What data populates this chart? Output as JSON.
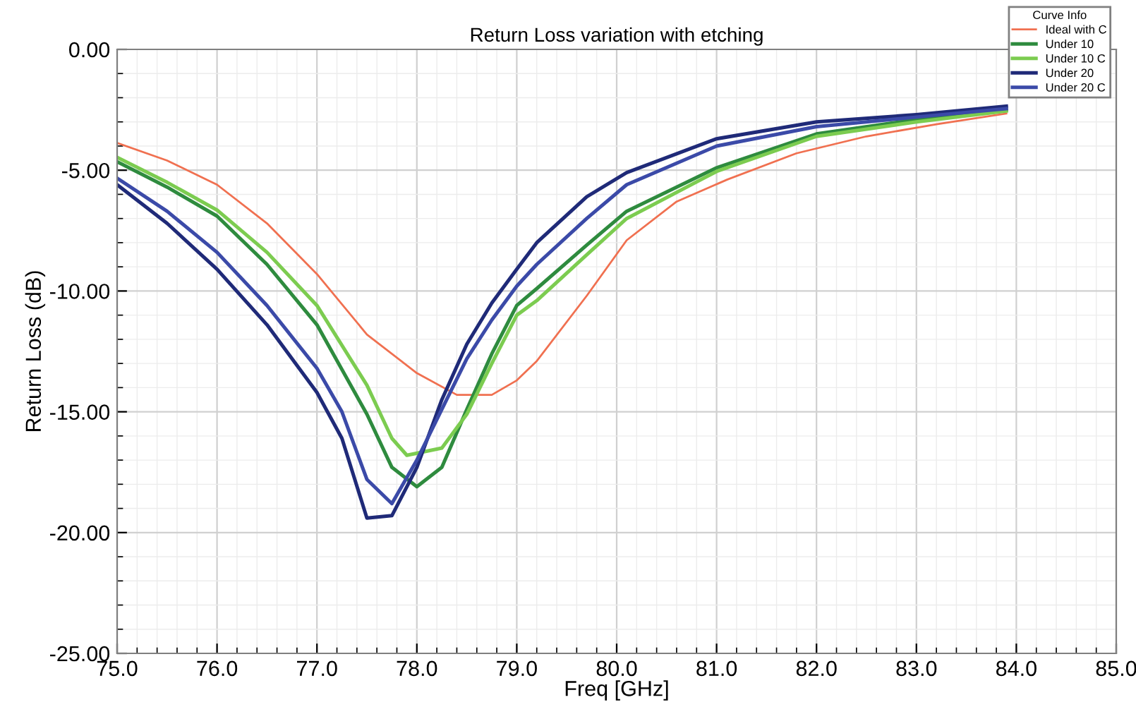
{
  "chart_data": {
    "type": "line",
    "title": "Return Loss variation with etching",
    "xlabel": "Freq [GHz]",
    "ylabel": "Return Loss (dB)",
    "legend_title": "Curve Info",
    "xlim": [
      75,
      85
    ],
    "ylim": [
      -25,
      0
    ],
    "xticks": [
      {
        "value": 75,
        "label": "75.0"
      },
      {
        "value": 76,
        "label": "76.0"
      },
      {
        "value": 77,
        "label": "77.0"
      },
      {
        "value": 78,
        "label": "78.0"
      },
      {
        "value": 79,
        "label": "79.0"
      },
      {
        "value": 80,
        "label": "80.0"
      },
      {
        "value": 81,
        "label": "81.0"
      },
      {
        "value": 82,
        "label": "82.0"
      },
      {
        "value": 83,
        "label": "83.0"
      },
      {
        "value": 84,
        "label": "84.0"
      },
      {
        "value": 85,
        "label": "85.0"
      }
    ],
    "yticks": [
      {
        "value": -25,
        "label": "-25.00"
      },
      {
        "value": -20,
        "label": "-20.00"
      },
      {
        "value": -15,
        "label": "-15.00"
      },
      {
        "value": -10,
        "label": "-10.00"
      },
      {
        "value": -5,
        "label": "-5.00"
      },
      {
        "value": 0,
        "label": "0.00"
      }
    ],
    "grid": true,
    "legend": "top right",
    "marker": "none",
    "line_style": "solid",
    "series": [
      {
        "name": "Ideal with C",
        "color": "#f07050",
        "x": [
          75,
          75.5,
          76,
          76.5,
          77,
          77.5,
          78,
          78.4,
          78.75,
          79,
          79.2,
          79.7,
          80.1,
          80.6,
          81.1,
          81.8,
          82.5,
          83.2,
          83.9
        ],
        "values": [
          -3.87,
          -4.6,
          -5.6,
          -7.2,
          -9.3,
          -11.8,
          -13.4,
          -14.3,
          -14.3,
          -13.7,
          -12.9,
          -10.2,
          -7.9,
          -6.3,
          -5.4,
          -4.3,
          -3.6,
          -3.1,
          -2.65
        ]
      },
      {
        "name": "Under 10",
        "color": "#2e8b3e",
        "x": [
          75,
          75.5,
          76,
          76.5,
          77,
          77.5,
          77.75,
          78,
          78.25,
          78.5,
          78.75,
          79,
          79.2,
          79.7,
          80.1,
          81.0,
          82.0,
          83.0,
          83.9
        ],
        "values": [
          -4.65,
          -5.7,
          -6.9,
          -8.9,
          -11.4,
          -15.1,
          -17.3,
          -18.1,
          -17.3,
          -14.9,
          -12.6,
          -10.6,
          -9.9,
          -8.1,
          -6.7,
          -4.9,
          -3.5,
          -2.9,
          -2.5
        ]
      },
      {
        "name": "Under 10 C",
        "color": "#7ccc50",
        "x": [
          75,
          75.5,
          76,
          76.5,
          77,
          77.5,
          77.75,
          77.9,
          78.25,
          78.5,
          78.75,
          79,
          79.2,
          79.7,
          80.1,
          81.0,
          82.0,
          83.0,
          83.9
        ],
        "values": [
          -4.47,
          -5.5,
          -6.65,
          -8.4,
          -10.6,
          -13.9,
          -16.1,
          -16.8,
          -16.5,
          -15.1,
          -13.0,
          -11.0,
          -10.4,
          -8.5,
          -7.0,
          -5.05,
          -3.6,
          -3.0,
          -2.55
        ]
      },
      {
        "name": "Under 20",
        "color": "#1f2a78",
        "x": [
          75,
          75.5,
          76,
          76.5,
          77,
          77.25,
          77.5,
          77.75,
          78,
          78.25,
          78.5,
          78.75,
          79,
          79.2,
          79.7,
          80.1,
          81.0,
          82.0,
          83.0,
          83.9
        ],
        "values": [
          -5.6,
          -7.2,
          -9.1,
          -11.4,
          -14.2,
          -16.1,
          -19.4,
          -19.3,
          -17.3,
          -14.5,
          -12.2,
          -10.5,
          -9.1,
          -8.0,
          -6.1,
          -5.1,
          -3.7,
          -3.0,
          -2.7,
          -2.35
        ]
      },
      {
        "name": "Under 20 C",
        "color": "#3b4aa8",
        "x": [
          75,
          75.5,
          76,
          76.5,
          77,
          77.25,
          77.5,
          77.75,
          78,
          78.25,
          78.5,
          78.75,
          79,
          79.2,
          79.7,
          80.1,
          81.0,
          82.0,
          83.0,
          83.9
        ],
        "values": [
          -5.33,
          -6.7,
          -8.4,
          -10.6,
          -13.2,
          -15.0,
          -17.8,
          -18.8,
          -17.0,
          -14.9,
          -12.8,
          -11.2,
          -9.8,
          -8.9,
          -7.0,
          -5.6,
          -4.0,
          -3.2,
          -2.8,
          -2.45
        ]
      }
    ]
  }
}
